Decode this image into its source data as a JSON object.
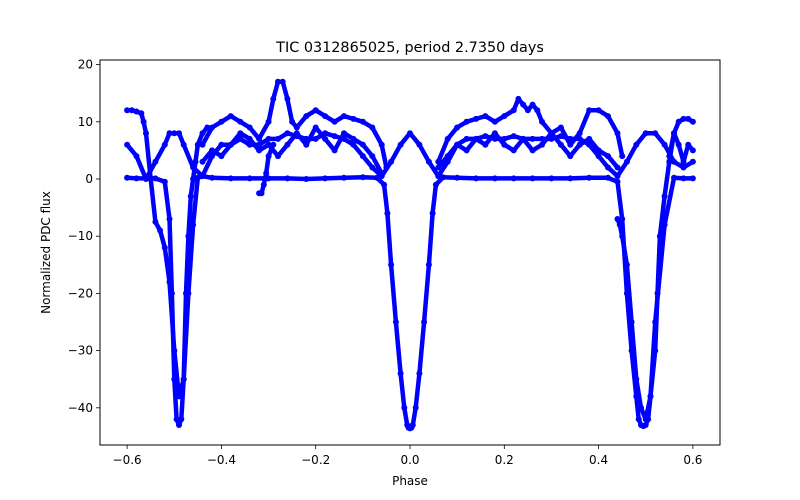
{
  "chart_data": {
    "type": "scatter",
    "title": "TIC 0312865025, period 2.7350 days",
    "xlabel": "Phase",
    "ylabel": "Normalized PDC flux",
    "xlim": [
      -0.6575,
      0.6575
    ],
    "ylim": [
      -46.5,
      20.8
    ],
    "xticks": [
      -0.6,
      -0.4,
      -0.2,
      0.0,
      0.2,
      0.4,
      0.6
    ],
    "xtick_labels": [
      "−0.6",
      "−0.4",
      "−0.2",
      "0.0",
      "0.2",
      "0.4",
      "0.6"
    ],
    "yticks": [
      -40,
      -30,
      -20,
      -10,
      0,
      10,
      20
    ],
    "ytick_labels": [
      "−40",
      "−30",
      "−20",
      "−10",
      "0",
      "10",
      "20"
    ],
    "grid": false,
    "legend": "none",
    "color": "#0000ff",
    "series": [
      {
        "x": [
          -0.6,
          -0.58,
          -0.56,
          -0.54,
          -0.52,
          -0.51,
          -0.505,
          -0.5,
          -0.495,
          -0.49,
          -0.485,
          -0.48,
          -0.47,
          -0.46,
          -0.45,
          -0.44,
          -0.42,
          -0.38,
          -0.34,
          -0.3,
          -0.26,
          -0.22,
          -0.18,
          -0.14,
          -0.1,
          -0.07,
          -0.055,
          -0.048,
          -0.04,
          -0.03,
          -0.02,
          -0.012,
          -0.006,
          -0.003,
          0.0,
          0.003,
          0.006,
          0.012,
          0.02,
          0.03,
          0.04,
          0.048,
          0.055,
          0.07,
          0.1,
          0.14,
          0.18,
          0.22,
          0.26,
          0.3,
          0.34,
          0.38,
          0.42,
          0.44,
          0.45,
          0.46,
          0.47,
          0.48,
          0.485,
          0.49,
          0.495,
          0.5,
          0.505,
          0.51,
          0.52,
          0.54,
          0.56,
          0.58,
          0.6
        ],
        "y": [
          0.2,
          0.1,
          0.1,
          0.1,
          -0.5,
          -7,
          -20,
          -35,
          -42,
          -43,
          -42,
          -35,
          -20,
          -8,
          0.2,
          0.5,
          0.2,
          0.1,
          0.1,
          0.1,
          0.1,
          0.0,
          0.1,
          0.2,
          0.3,
          0.2,
          -1,
          -6,
          -15,
          -25,
          -34,
          -40,
          -43,
          -43.5,
          -43.6,
          -43.5,
          -43,
          -40,
          -34,
          -25,
          -15,
          -6,
          -1,
          0.3,
          0.2,
          0.1,
          0.1,
          0.1,
          0.1,
          0.1,
          0.1,
          0.2,
          0.2,
          -0.5,
          -7,
          -20,
          -30,
          -38,
          -42,
          -43,
          -43.2,
          -43,
          -42,
          -38,
          -25,
          -8,
          0.2,
          0.1,
          0.1
        ]
      },
      {
        "x": [
          -0.6,
          -0.59,
          -0.58,
          -0.57,
          -0.565,
          -0.56,
          -0.55,
          -0.54,
          -0.53,
          -0.52,
          -0.51,
          -0.5,
          -0.49,
          -0.48,
          -0.475,
          -0.47,
          -0.465,
          -0.46,
          -0.455,
          -0.45,
          -0.44,
          -0.43
        ],
        "y": [
          12,
          12,
          11.8,
          11.5,
          10,
          8,
          0,
          -7.5,
          -9,
          -12,
          -18,
          -30,
          -38,
          -35,
          -20,
          -10,
          -3,
          0,
          3,
          6,
          8,
          9
        ]
      },
      {
        "x": [
          -0.6,
          -0.58,
          -0.56,
          -0.54,
          -0.52,
          -0.51,
          -0.5,
          -0.49,
          -0.48,
          -0.46,
          -0.44,
          -0.42,
          -0.4,
          -0.38,
          -0.36,
          -0.34,
          -0.32,
          -0.3,
          -0.28,
          -0.26,
          -0.24,
          -0.22,
          -0.2,
          -0.18,
          -0.16,
          -0.14,
          -0.12,
          -0.1,
          -0.08,
          -0.06,
          -0.04,
          -0.02,
          0.0,
          0.02,
          0.04,
          0.06,
          0.08,
          0.1,
          0.12,
          0.14,
          0.16,
          0.18,
          0.2,
          0.22,
          0.24,
          0.26,
          0.28,
          0.3,
          0.32,
          0.34,
          0.36,
          0.38,
          0.4,
          0.42,
          0.44,
          0.46,
          0.48,
          0.5,
          0.52,
          0.54,
          0.56,
          0.58,
          0.6
        ],
        "y": [
          6,
          4,
          0,
          3,
          6,
          8,
          8,
          8,
          6,
          2,
          0.5,
          4,
          6,
          6,
          7,
          6,
          6,
          7,
          7,
          8,
          7.5,
          7,
          7,
          8,
          7.5,
          7,
          6,
          4,
          2,
          0.5,
          3,
          6,
          8,
          6,
          3,
          0.5,
          3,
          6,
          7,
          7,
          7.5,
          7,
          7,
          7.5,
          7,
          7,
          7,
          7,
          7.5,
          7,
          7,
          6,
          4,
          2,
          0.5,
          3,
          6,
          8,
          8,
          6,
          3,
          2,
          3
        ]
      },
      {
        "x": [
          -0.44,
          -0.42,
          -0.4,
          -0.38,
          -0.36,
          -0.34,
          -0.32,
          -0.3,
          -0.29,
          -0.28,
          -0.27,
          -0.26,
          -0.25,
          -0.24,
          -0.22,
          -0.2,
          -0.18,
          -0.16,
          -0.14,
          -0.12,
          -0.1,
          -0.08,
          -0.06,
          -0.05
        ],
        "y": [
          6,
          9,
          10,
          11,
          10,
          9,
          7,
          10,
          14,
          17,
          17,
          14,
          10,
          9,
          11,
          12,
          11,
          10,
          11,
          10.5,
          10,
          9,
          6,
          2
        ]
      },
      {
        "x": [
          -0.44,
          -0.42,
          -0.4,
          -0.38,
          -0.36,
          -0.34,
          -0.32,
          -0.3,
          -0.28,
          -0.26,
          -0.24,
          -0.22,
          -0.2,
          -0.18,
          -0.16,
          -0.14,
          -0.12,
          -0.1,
          -0.08,
          -0.06
        ],
        "y": [
          3,
          5,
          4,
          6,
          8,
          7,
          5,
          6,
          4,
          6,
          8,
          6,
          9,
          7,
          5,
          8,
          7,
          6,
          4,
          1
        ]
      },
      {
        "x": [
          -0.32,
          -0.315,
          -0.31,
          -0.305,
          -0.3,
          -0.29
        ],
        "y": [
          -2.5,
          -2.5,
          -1,
          1,
          4,
          6
        ]
      },
      {
        "x": [
          0.06,
          0.08,
          0.1,
          0.12,
          0.14,
          0.16,
          0.18,
          0.2,
          0.22,
          0.23,
          0.24,
          0.25,
          0.26,
          0.27,
          0.28,
          0.3,
          0.32,
          0.34,
          0.36,
          0.38,
          0.4,
          0.42,
          0.44,
          0.45
        ],
        "y": [
          3,
          7,
          9,
          10,
          10.5,
          11,
          10,
          11,
          12,
          14,
          13,
          12,
          13,
          12,
          10,
          8,
          9,
          6,
          8,
          12,
          12,
          11,
          8,
          4
        ]
      },
      {
        "x": [
          0.06,
          0.08,
          0.1,
          0.12,
          0.14,
          0.16,
          0.18,
          0.2,
          0.22,
          0.24,
          0.26,
          0.28,
          0.3,
          0.32,
          0.34,
          0.36,
          0.38,
          0.4,
          0.42,
          0.44
        ],
        "y": [
          2,
          4,
          6,
          5,
          7,
          6,
          8,
          6,
          5,
          7,
          5,
          6,
          8,
          6,
          4,
          6,
          7,
          5,
          4,
          2
        ]
      },
      {
        "x": [
          0.44,
          0.445,
          0.45,
          0.46,
          0.47,
          0.48,
          0.49,
          0.5,
          0.51,
          0.52,
          0.525,
          0.53,
          0.54,
          0.55,
          0.56,
          0.57,
          0.58,
          0.59,
          0.6
        ],
        "y": [
          -7,
          -8,
          -10,
          -15,
          -25,
          -35,
          -40,
          -42,
          -38,
          -30,
          -20,
          -10,
          -3,
          3,
          8,
          10,
          10.5,
          10.5,
          10
        ]
      },
      {
        "x": [
          0.55,
          0.56,
          0.57,
          0.58,
          0.59,
          0.6
        ],
        "y": [
          4,
          8,
          6,
          3,
          6,
          5
        ]
      }
    ]
  }
}
